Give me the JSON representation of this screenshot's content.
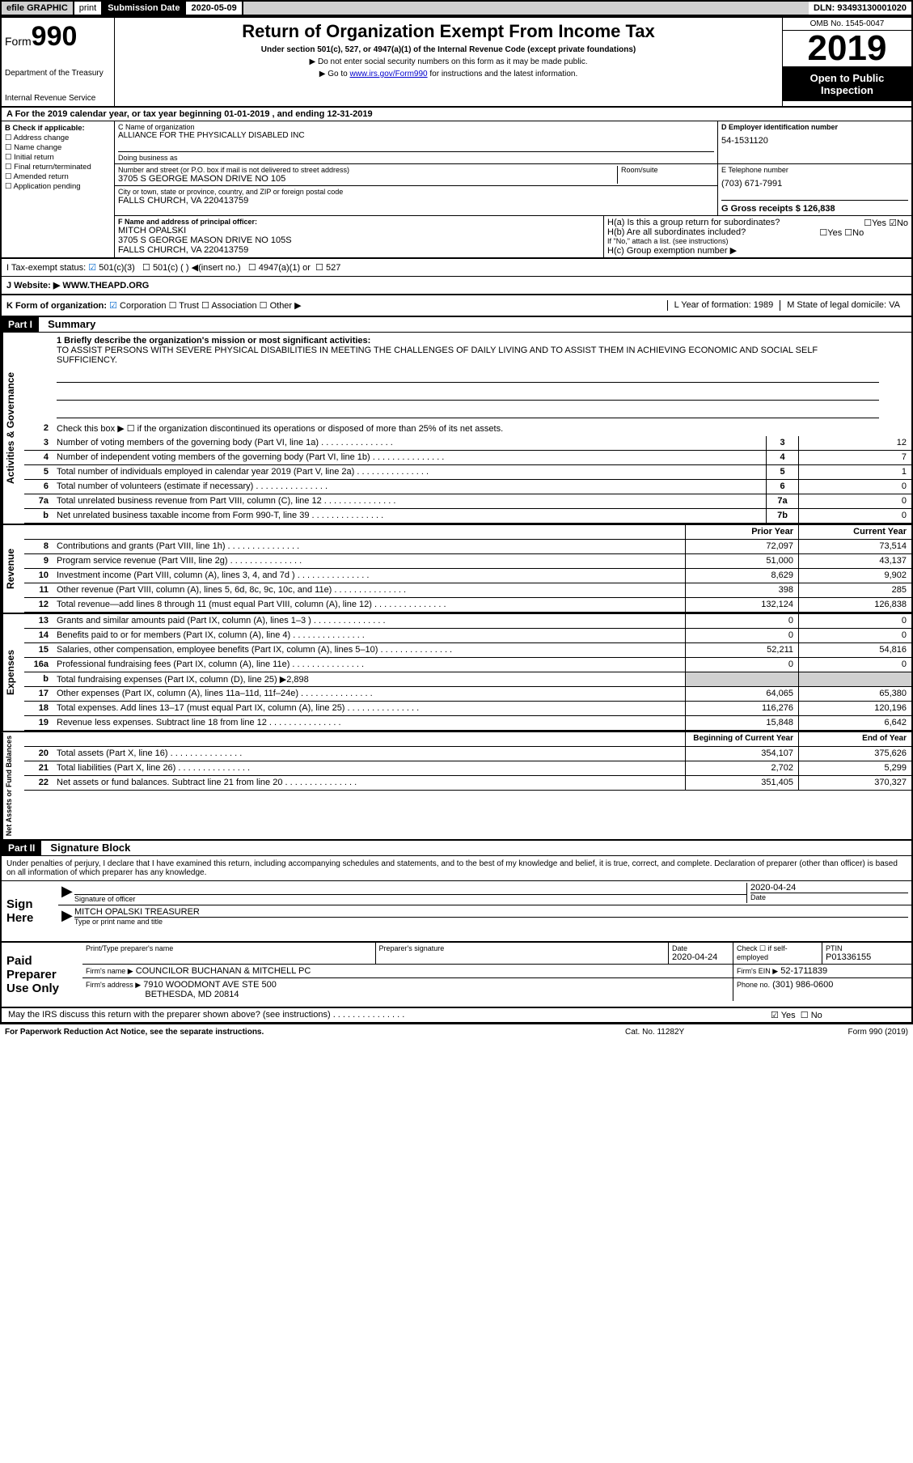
{
  "topbar": {
    "efile": "efile GRAPHIC",
    "print": "print",
    "subdate_lbl": "Submission Date",
    "subdate_val": "2020-05-09",
    "dln": "DLN: 93493130001020"
  },
  "header": {
    "form": "Form",
    "n990": "990",
    "dept": "Department of the Treasury",
    "irs": "Internal Revenue Service",
    "title": "Return of Organization Exempt From Income Tax",
    "sub": "Under section 501(c), 527, or 4947(a)(1) of the Internal Revenue Code (except private foundations)",
    "note1": "▶ Do not enter social security numbers on this form as it may be made public.",
    "note2_pre": "▶ Go to ",
    "note2_link": "www.irs.gov/Form990",
    "note2_post": " for instructions and the latest information.",
    "omb": "OMB No. 1545-0047",
    "year": "2019",
    "openpub": "Open to Public Inspection"
  },
  "period": {
    "a": "A For the 2019 calendar year, or tax year beginning 01-01-2019   , and ending 12-31-2019"
  },
  "sectionB": {
    "hdr": "B Check if applicable:",
    "opts": [
      "Address change",
      "Name change",
      "Initial return",
      "Final return/terminated",
      "Amended return",
      "Application pending"
    ]
  },
  "sectionC": {
    "name_lbl": "C Name of organization",
    "name": "ALLIANCE FOR THE PHYSICALLY DISABLED INC",
    "dba_lbl": "Doing business as",
    "street_lbl": "Number and street (or P.O. box if mail is not delivered to street address)",
    "room_lbl": "Room/suite",
    "street": "3705 S GEORGE MASON DRIVE NO 105",
    "city_lbl": "City or town, state or province, country, and ZIP or foreign postal code",
    "city": "FALLS CHURCH, VA  220413759"
  },
  "sectionD": {
    "lbl": "D Employer identification number",
    "val": "54-1531120"
  },
  "sectionE": {
    "lbl": "E Telephone number",
    "val": "(703) 671-7991"
  },
  "sectionG": {
    "lbl": "G Gross receipts $ 126,838"
  },
  "sectionF": {
    "lbl": "F  Name and address of principal officer:",
    "name": "MITCH OPALSKI",
    "addr1": "3705 S GEORGE MASON DRIVE NO 105S",
    "addr2": "FALLS CHURCH, VA  220413759"
  },
  "sectionH": {
    "ha": "H(a)  Is this a group return for subordinates?",
    "hb": "H(b)  Are all subordinates included?",
    "hb_note": "If \"No,\" attach a list. (see instructions)",
    "hc": "H(c)  Group exemption number ▶",
    "yes": "Yes",
    "no": "No"
  },
  "taxstatus": {
    "lbl": "I  Tax-exempt status:",
    "c3": "501(c)(3)",
    "c": "501(c) (   ) ◀(insert no.)",
    "a1": "4947(a)(1) or",
    "s527": "527"
  },
  "website": {
    "lbl": "J  Website: ▶",
    "val": "WWW.THEAPD.ORG"
  },
  "sectionK": {
    "lbl": "K Form of organization:",
    "corp": "Corporation",
    "trust": "Trust",
    "assoc": "Association",
    "other": "Other ▶"
  },
  "sectionL": {
    "lbl": "L Year of formation: 1989"
  },
  "sectionM": {
    "lbl": "M State of legal domicile: VA"
  },
  "part1": {
    "hdr": "Part I",
    "title": "Summary",
    "briefly_lbl": "1  Briefly describe the organization's mission or most significant activities:",
    "briefly": "TO ASSIST PERSONS WITH SEVERE PHYSICAL DISABILITIES IN MEETING THE CHALLENGES OF DAILY LIVING AND TO ASSIST THEM IN ACHIEVING ECONOMIC AND SOCIAL SELF SUFFICIENCY.",
    "line2": "Check this box ▶ ☐  if the organization discontinued its operations or disposed of more than 25% of its net assets."
  },
  "gov_lines": [
    {
      "n": "3",
      "d": "Number of voting members of the governing body (Part VI, line 1a)",
      "b": "3",
      "v": "12"
    },
    {
      "n": "4",
      "d": "Number of independent voting members of the governing body (Part VI, line 1b)",
      "b": "4",
      "v": "7"
    },
    {
      "n": "5",
      "d": "Total number of individuals employed in calendar year 2019 (Part V, line 2a)",
      "b": "5",
      "v": "1"
    },
    {
      "n": "6",
      "d": "Total number of volunteers (estimate if necessary)",
      "b": "6",
      "v": "0"
    },
    {
      "n": "7a",
      "d": "Total unrelated business revenue from Part VIII, column (C), line 12",
      "b": "7a",
      "v": "0"
    },
    {
      "n": "b",
      "d": "Net unrelated business taxable income from Form 990-T, line 39",
      "b": "7b",
      "v": "0"
    }
  ],
  "col_hdrs": {
    "py": "Prior Year",
    "cy": "Current Year"
  },
  "rev_lines": [
    {
      "n": "8",
      "d": "Contributions and grants (Part VIII, line 1h)",
      "py": "72,097",
      "cy": "73,514"
    },
    {
      "n": "9",
      "d": "Program service revenue (Part VIII, line 2g)",
      "py": "51,000",
      "cy": "43,137"
    },
    {
      "n": "10",
      "d": "Investment income (Part VIII, column (A), lines 3, 4, and 7d )",
      "py": "8,629",
      "cy": "9,902"
    },
    {
      "n": "11",
      "d": "Other revenue (Part VIII, column (A), lines 5, 6d, 8c, 9c, 10c, and 11e)",
      "py": "398",
      "cy": "285"
    },
    {
      "n": "12",
      "d": "Total revenue—add lines 8 through 11 (must equal Part VIII, column (A), line 12)",
      "py": "132,124",
      "cy": "126,838"
    }
  ],
  "exp_lines": [
    {
      "n": "13",
      "d": "Grants and similar amounts paid (Part IX, column (A), lines 1–3 )",
      "py": "0",
      "cy": "0"
    },
    {
      "n": "14",
      "d": "Benefits paid to or for members (Part IX, column (A), line 4)",
      "py": "0",
      "cy": "0"
    },
    {
      "n": "15",
      "d": "Salaries, other compensation, employee benefits (Part IX, column (A), lines 5–10)",
      "py": "52,211",
      "cy": "54,816"
    },
    {
      "n": "16a",
      "d": "Professional fundraising fees (Part IX, column (A), line 11e)",
      "py": "0",
      "cy": "0"
    },
    {
      "n": "b",
      "d": "Total fundraising expenses (Part IX, column (D), line 25) ▶2,898",
      "py": "",
      "cy": "",
      "shade": true
    },
    {
      "n": "17",
      "d": "Other expenses (Part IX, column (A), lines 11a–11d, 11f–24e)",
      "py": "64,065",
      "cy": "65,380"
    },
    {
      "n": "18",
      "d": "Total expenses. Add lines 13–17 (must equal Part IX, column (A), line 25)",
      "py": "116,276",
      "cy": "120,196"
    },
    {
      "n": "19",
      "d": "Revenue less expenses. Subtract line 18 from line 12",
      "py": "15,848",
      "cy": "6,642"
    }
  ],
  "net_hdrs": {
    "b": "Beginning of Current Year",
    "e": "End of Year"
  },
  "net_lines": [
    {
      "n": "20",
      "d": "Total assets (Part X, line 16)",
      "py": "354,107",
      "cy": "375,626"
    },
    {
      "n": "21",
      "d": "Total liabilities (Part X, line 26)",
      "py": "2,702",
      "cy": "5,299"
    },
    {
      "n": "22",
      "d": "Net assets or fund balances. Subtract line 21 from line 20",
      "py": "351,405",
      "cy": "370,327"
    }
  ],
  "part2": {
    "hdr": "Part II",
    "title": "Signature Block",
    "penalty": "Under penalties of perjury, I declare that I have examined this return, including accompanying schedules and statements, and to the best of my knowledge and belief, it is true, correct, and complete. Declaration of preparer (other than officer) is based on all information of which preparer has any knowledge."
  },
  "sign": {
    "here": "Sign Here",
    "sig_lbl": "Signature of officer",
    "date_lbl": "Date",
    "date": "2020-04-24",
    "name": "MITCH OPALSKI  TREASURER",
    "name_lbl": "Type or print name and title"
  },
  "prep": {
    "hdr": "Paid Preparer Use Only",
    "name_lbl": "Print/Type preparer's name",
    "sig_lbl": "Preparer's signature",
    "date_lbl": "Date",
    "date": "2020-04-24",
    "self_lbl": "Check ☐ if self-employed",
    "ptin_lbl": "PTIN",
    "ptin": "P01336155",
    "firm_lbl": "Firm's name    ▶",
    "firm": "COUNCILOR BUCHANAN & MITCHELL PC",
    "ein_lbl": "Firm's EIN ▶",
    "ein": "52-1711839",
    "addr_lbl": "Firm's address ▶",
    "addr1": "7910 WOODMONT AVE STE 500",
    "addr2": "BETHESDA, MD  20814",
    "phone_lbl": "Phone no.",
    "phone": "(301) 986-0600",
    "discuss": "May the IRS discuss this return with the preparer shown above? (see instructions)"
  },
  "footer": {
    "f1": "For Paperwork Reduction Act Notice, see the separate instructions.",
    "f2": "Cat. No. 11282Y",
    "f3": "Form 990 (2019)"
  },
  "colors": {
    "black": "#000000",
    "gray": "#d0d0d0",
    "link": "#0000cc",
    "check": "#0066cc"
  }
}
